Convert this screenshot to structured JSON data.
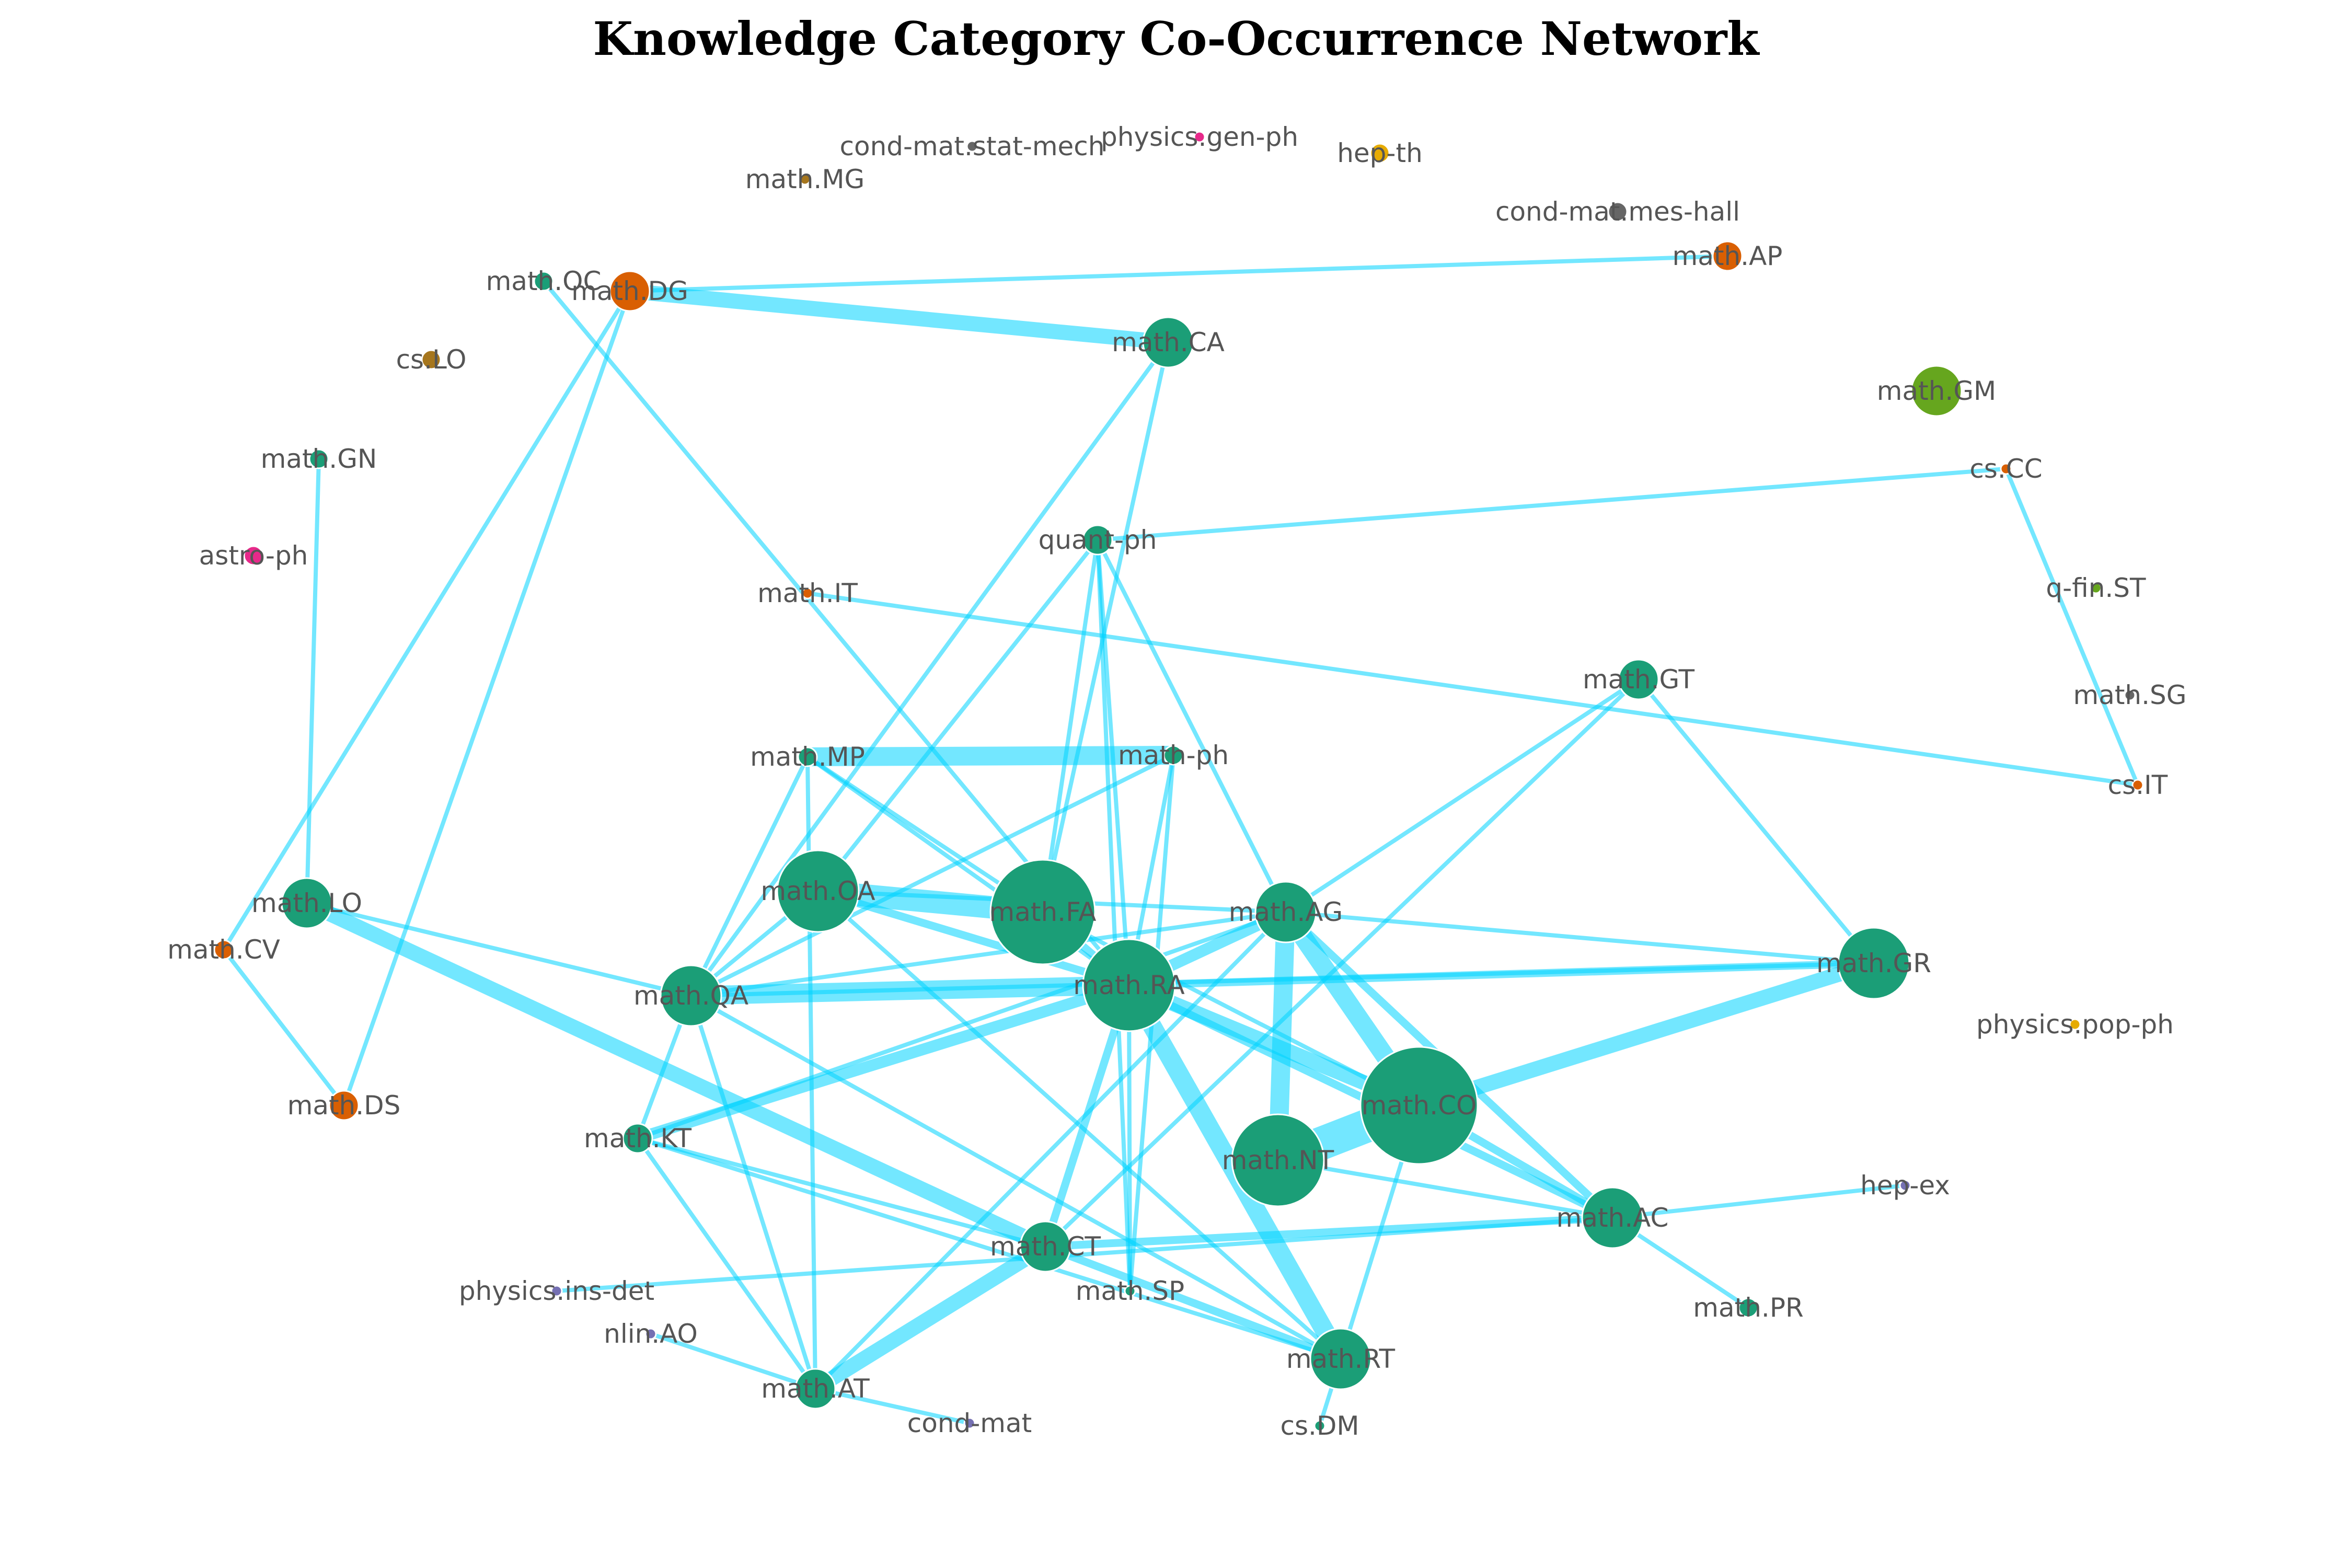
{
  "title": "Knowledge Category Co-Occurrence Network",
  "colors": {
    "edge": "#00d4ff",
    "teal": "#1b9e77",
    "orange": "#d95f02",
    "olive": "#a6761d",
    "pink": "#e7298a",
    "green": "#66a61e",
    "purple": "#7570b3",
    "yellow": "#e6ab02",
    "gray": "#666666",
    "label": "#555555"
  },
  "nodes": [
    {
      "id": "math.OC",
      "color": "teal",
      "size": 1
    },
    {
      "id": "math.DG",
      "color": "orange",
      "size": 3
    },
    {
      "id": "math.CA",
      "color": "teal",
      "size": 4
    },
    {
      "id": "math.AP",
      "color": "orange",
      "size": 2
    },
    {
      "id": "cs.LO",
      "color": "olive",
      "size": 1
    },
    {
      "id": "math.GN",
      "color": "teal",
      "size": 1
    },
    {
      "id": "astro-ph",
      "color": "pink",
      "size": 1
    },
    {
      "id": "math.MG",
      "color": "olive",
      "size": 0
    },
    {
      "id": "cond-mat.stat-mech",
      "color": "gray",
      "size": 0
    },
    {
      "id": "physics.gen-ph",
      "color": "pink",
      "size": 0
    },
    {
      "id": "hep-th",
      "color": "yellow",
      "size": 1
    },
    {
      "id": "cond-mat.mes-hall",
      "color": "gray",
      "size": 1
    },
    {
      "id": "math.GM",
      "color": "green",
      "size": 4
    },
    {
      "id": "cs.CC",
      "color": "orange",
      "size": 0
    },
    {
      "id": "quant-ph",
      "color": "teal",
      "size": 2
    },
    {
      "id": "math.IT",
      "color": "orange",
      "size": 0
    },
    {
      "id": "q-fin.ST",
      "color": "green",
      "size": 0
    },
    {
      "id": "math.GT",
      "color": "teal",
      "size": 3
    },
    {
      "id": "math.SG",
      "color": "gray",
      "size": 0
    },
    {
      "id": "math.MP",
      "color": "teal",
      "size": 1
    },
    {
      "id": "math-ph",
      "color": "teal",
      "size": 1
    },
    {
      "id": "cs.IT",
      "color": "orange",
      "size": 0
    },
    {
      "id": "math.OA",
      "color": "teal",
      "size": 7
    },
    {
      "id": "math.FA",
      "color": "teal",
      "size": 9
    },
    {
      "id": "math.AG",
      "color": "teal",
      "size": 5
    },
    {
      "id": "math.LO",
      "color": "teal",
      "size": 4
    },
    {
      "id": "math.CV",
      "color": "orange",
      "size": 1
    },
    {
      "id": "math.GR",
      "color": "teal",
      "size": 6
    },
    {
      "id": "math.QA",
      "color": "teal",
      "size": 5
    },
    {
      "id": "math.RA",
      "color": "teal",
      "size": 8
    },
    {
      "id": "physics.pop-ph",
      "color": "yellow",
      "size": 0
    },
    {
      "id": "math.CO",
      "color": "teal",
      "size": 10
    },
    {
      "id": "math.DS",
      "color": "orange",
      "size": 2
    },
    {
      "id": "math.KT",
      "color": "teal",
      "size": 2
    },
    {
      "id": "math.NT",
      "color": "teal",
      "size": 8
    },
    {
      "id": "hep-ex",
      "color": "purple",
      "size": 0
    },
    {
      "id": "math.AC",
      "color": "teal",
      "size": 5
    },
    {
      "id": "math.CT",
      "color": "teal",
      "size": 4
    },
    {
      "id": "physics.ins-det",
      "color": "purple",
      "size": 0
    },
    {
      "id": "math.SP",
      "color": "teal",
      "size": 0
    },
    {
      "id": "math.PR",
      "color": "teal",
      "size": 1
    },
    {
      "id": "nlin.AO",
      "color": "purple",
      "size": 0
    },
    {
      "id": "math.RT",
      "color": "teal",
      "size": 5
    },
    {
      "id": "math.AT",
      "color": "teal",
      "size": 3
    },
    {
      "id": "cond-mat",
      "color": "purple",
      "size": 0
    },
    {
      "id": "cs.DM",
      "color": "teal",
      "size": 0
    }
  ],
  "edges": [
    {
      "a": "math.OC",
      "b": "math.RA",
      "w": 1
    },
    {
      "a": "math.DG",
      "b": "math.CA",
      "w": 4
    },
    {
      "a": "math.DG",
      "b": "math.AP",
      "w": 1
    },
    {
      "a": "math.DG",
      "b": "math.CV",
      "w": 1
    },
    {
      "a": "math.DG",
      "b": "math.DS",
      "w": 1
    },
    {
      "a": "math.CA",
      "b": "math.QA",
      "w": 1
    },
    {
      "a": "math.CA",
      "b": "math.FA",
      "w": 1
    },
    {
      "a": "math.GN",
      "b": "math.LO",
      "w": 1
    },
    {
      "a": "math.LO",
      "b": "math.CT",
      "w": 4
    },
    {
      "a": "math.LO",
      "b": "math.QA",
      "w": 1
    },
    {
      "a": "math.CV",
      "b": "math.DS",
      "w": 1
    },
    {
      "a": "quant-ph",
      "b": "cs.CC",
      "w": 1
    },
    {
      "a": "quant-ph",
      "b": "math.OA",
      "w": 1
    },
    {
      "a": "quant-ph",
      "b": "math.FA",
      "w": 1
    },
    {
      "a": "quant-ph",
      "b": "math.RA",
      "w": 1
    },
    {
      "a": "quant-ph",
      "b": "math.SP",
      "w": 1
    },
    {
      "a": "quant-ph",
      "b": "math.AG",
      "w": 1
    },
    {
      "a": "math.IT",
      "b": "cs.IT",
      "w": 1
    },
    {
      "a": "cs.CC",
      "b": "cs.IT",
      "w": 1
    },
    {
      "a": "math.MP",
      "b": "math-ph",
      "w": 5
    },
    {
      "a": "math.MP",
      "b": "math.QA",
      "w": 1
    },
    {
      "a": "math.MP",
      "b": "math.FA",
      "w": 1
    },
    {
      "a": "math.MP",
      "b": "math.RA",
      "w": 1
    },
    {
      "a": "math.MP",
      "b": "math.AT",
      "w": 1
    },
    {
      "a": "math-ph",
      "b": "math.QA",
      "w": 1
    },
    {
      "a": "math-ph",
      "b": "math.RA",
      "w": 1
    },
    {
      "a": "math-ph",
      "b": "math.SP",
      "w": 1
    },
    {
      "a": "math.OA",
      "b": "math.FA",
      "w": 6
    },
    {
      "a": "math.OA",
      "b": "math.RA",
      "w": 2
    },
    {
      "a": "math.OA",
      "b": "math.QA",
      "w": 1
    },
    {
      "a": "math.OA",
      "b": "math.AG",
      "w": 1
    },
    {
      "a": "math.OA",
      "b": "math.RT",
      "w": 1
    },
    {
      "a": "math.FA",
      "b": "math.RA",
      "w": 2
    },
    {
      "a": "math.FA",
      "b": "math.CO",
      "w": 1
    },
    {
      "a": "math.QA",
      "b": "math.RA",
      "w": 5
    },
    {
      "a": "math.QA",
      "b": "math.AG",
      "w": 1
    },
    {
      "a": "math.QA",
      "b": "math.GR",
      "w": 1
    },
    {
      "a": "math.QA",
      "b": "math.KT",
      "w": 1
    },
    {
      "a": "math.QA",
      "b": "math.AT",
      "w": 1
    },
    {
      "a": "math.QA",
      "b": "math.RT",
      "w": 1
    },
    {
      "a": "math.RA",
      "b": "math.AG",
      "w": 3
    },
    {
      "a": "math.RA",
      "b": "math.GR",
      "w": 2
    },
    {
      "a": "math.RA",
      "b": "math.CO",
      "w": 4
    },
    {
      "a": "math.RA",
      "b": "math.KT",
      "w": 3
    },
    {
      "a": "math.RA",
      "b": "math.CT",
      "w": 2
    },
    {
      "a": "math.RA",
      "b": "math.RT",
      "w": 5
    },
    {
      "a": "math.RA",
      "b": "math.AC",
      "w": 2
    },
    {
      "a": "math.RA",
      "b": "math.SP",
      "w": 1
    },
    {
      "a": "math.AG",
      "b": "math.GR",
      "w": 1
    },
    {
      "a": "math.AG",
      "b": "math.NT",
      "w": 5
    },
    {
      "a": "math.AG",
      "b": "math.CO",
      "w": 5
    },
    {
      "a": "math.AG",
      "b": "math.AC",
      "w": 2
    },
    {
      "a": "math.AG",
      "b": "math.KT",
      "w": 1
    },
    {
      "a": "math.AG",
      "b": "math.GT",
      "w": 1
    },
    {
      "a": "math.AG",
      "b": "math.AT",
      "w": 1
    },
    {
      "a": "math.GT",
      "b": "math.GR",
      "w": 1
    },
    {
      "a": "math.GT",
      "b": "math.CT",
      "w": 1
    },
    {
      "a": "math.GR",
      "b": "math.CO",
      "w": 4
    },
    {
      "a": "math.CO",
      "b": "math.NT",
      "w": 9
    },
    {
      "a": "math.CO",
      "b": "math.AC",
      "w": 2
    },
    {
      "a": "math.CO",
      "b": "math.RT",
      "w": 1
    },
    {
      "a": "math.NT",
      "b": "math.AC",
      "w": 1
    },
    {
      "a": "math.KT",
      "b": "math.CT",
      "w": 1
    },
    {
      "a": "math.KT",
      "b": "math.AT",
      "w": 1
    },
    {
      "a": "math.KT",
      "b": "math.RT",
      "w": 1
    },
    {
      "a": "math.CT",
      "b": "math.AT",
      "w": 4
    },
    {
      "a": "math.CT",
      "b": "math.AC",
      "w": 2
    },
    {
      "a": "math.CT",
      "b": "math.RT",
      "w": 2
    },
    {
      "a": "math.AC",
      "b": "hep-ex",
      "w": 1
    },
    {
      "a": "math.AC",
      "b": "math.PR",
      "w": 1
    },
    {
      "a": "math.AC",
      "b": "physics.ins-det",
      "w": 1
    },
    {
      "a": "math.RT",
      "b": "cs.DM",
      "w": 1
    },
    {
      "a": "math.AT",
      "b": "nlin.AO",
      "w": 1
    },
    {
      "a": "math.AT",
      "b": "cond-mat",
      "w": 1
    }
  ]
}
